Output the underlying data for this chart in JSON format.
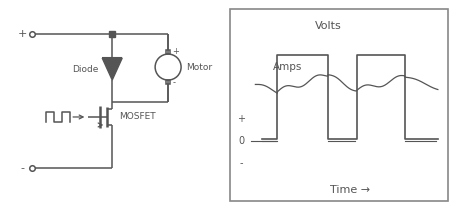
{
  "bg_color": "#ffffff",
  "fig_bg": "#ffffff",
  "line_color": "#555555",
  "lw": 1.1,
  "volts_label": "Volts",
  "amps_label": "Amps",
  "time_label": "Time →",
  "diode_label": "Diode",
  "motor_label": "Motor",
  "mosfet_label": "MOSFET",
  "plus_top": "+",
  "minus_bot": "-",
  "ref_plus": "+",
  "ref_zero": "0",
  "ref_minus": "-"
}
